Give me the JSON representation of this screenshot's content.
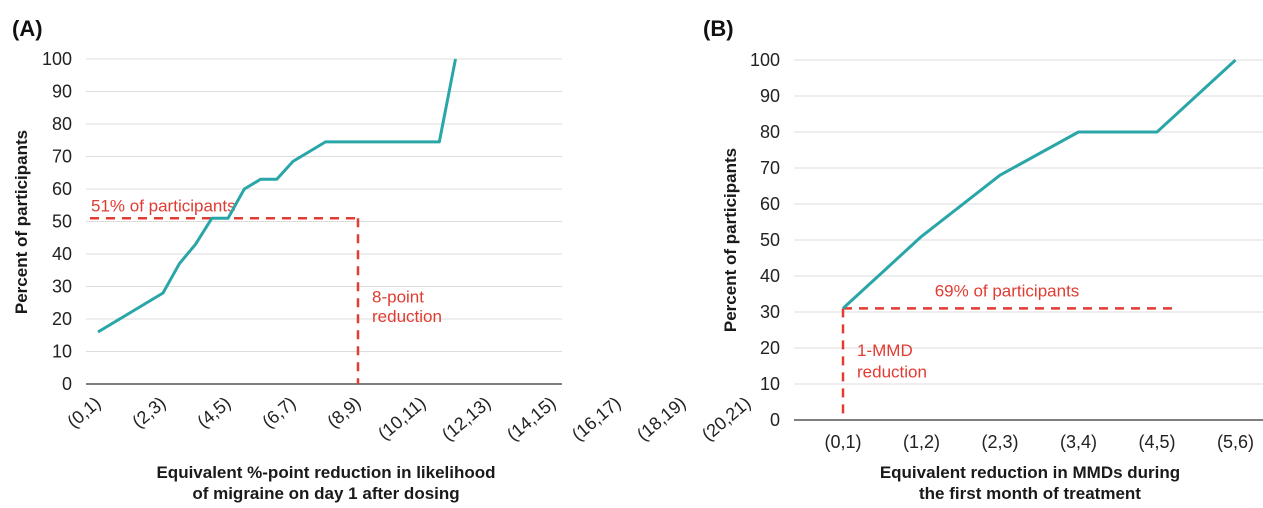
{
  "colors": {
    "line": "#2aa6a8",
    "annotation": "#e03c31",
    "grid": "#dddddd",
    "axis": "#333333",
    "text": "#222222"
  },
  "chart_data": [
    {
      "type": "line",
      "panel_label": "(A)",
      "categories": [
        "(0,1)",
        "(2,3)",
        "(4,5)",
        "(6,7)",
        "(8,9)",
        "(10,11)",
        "(12,13)",
        "(14,15)",
        "(16,17)",
        "(18,19)",
        "(20,21)"
      ],
      "x": [
        0,
        1,
        2,
        2.5,
        3,
        3.5,
        4,
        4.5,
        5,
        5.5,
        6,
        6.5,
        7,
        7.5,
        8,
        8.5,
        9,
        9.5,
        10,
        10.5,
        11
      ],
      "values": [
        16,
        22,
        28,
        37,
        43,
        51,
        51,
        60,
        63,
        63,
        68.5,
        71.5,
        74.5,
        74.5,
        74.5,
        74.5,
        74.5,
        74.5,
        74.5,
        74.5,
        100
      ],
      "xlabel_lines": [
        "Equivalent %-point reduction in likelihood",
        "of migraine on day 1 after dosing"
      ],
      "ylabel": "Percent of participants",
      "ylim": [
        0,
        100
      ],
      "yticks": [
        0,
        10,
        20,
        30,
        40,
        50,
        60,
        70,
        80,
        90,
        100
      ],
      "grid": true,
      "annotations": [
        {
          "text": "51% of participants",
          "y": 51
        },
        {
          "text_lines": [
            "8-point",
            "reduction"
          ],
          "x": 8
        }
      ]
    },
    {
      "type": "line",
      "panel_label": "(B)",
      "categories": [
        "(0,1)",
        "(1,2)",
        "(2,3)",
        "(3,4)",
        "(4,5)",
        "(5,6)"
      ],
      "x": [
        0,
        1,
        2,
        3,
        4,
        5
      ],
      "values": [
        31,
        51,
        68,
        80,
        80,
        100
      ],
      "xlabel_lines": [
        "Equivalent reduction in MMDs during",
        "the first month of treatment"
      ],
      "ylabel": "Percent of participants",
      "ylim": [
        0,
        100
      ],
      "yticks": [
        0,
        10,
        20,
        30,
        40,
        50,
        60,
        70,
        80,
        90,
        100
      ],
      "grid": true,
      "annotations": [
        {
          "text": "69% of participants",
          "y": 31
        },
        {
          "text_lines": [
            "1-MMD",
            "reduction"
          ],
          "x": 0
        }
      ]
    }
  ]
}
